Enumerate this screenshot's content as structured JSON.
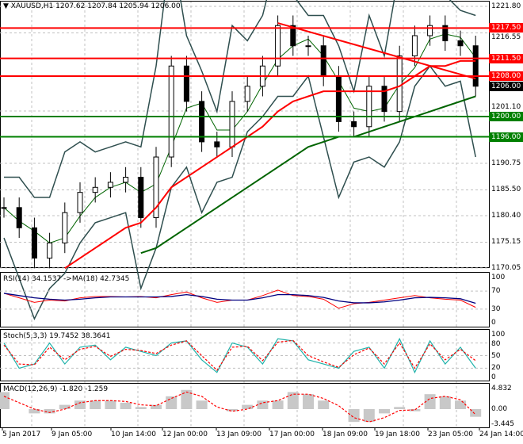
{
  "header": {
    "symbol": "XAUUSD,H1",
    "ohlc": "1207.62 1207.84 1205.94 1206.00"
  },
  "price_axis": [
    "1221.80",
    "1216.55",
    "1201.10",
    "1190.75",
    "1185.50",
    "1180.40",
    "1175.15",
    "1170.05"
  ],
  "levels": [
    {
      "label": "1217.50",
      "value": 1217.5,
      "color": "#ff0000"
    },
    {
      "label": "1211.50",
      "value": 1211.5,
      "color": "#ff0000"
    },
    {
      "label": "1208.00",
      "value": 1208.0,
      "color": "#ff0000"
    },
    {
      "label": "1200.00",
      "value": 1200.0,
      "color": "#008000"
    },
    {
      "label": "1196.00",
      "value": 1196.0,
      "color": "#008000"
    }
  ],
  "bid": {
    "label": "1206.00",
    "value": 1206.0
  },
  "indicators": {
    "rsi": {
      "title": "RSI(14) 34.1537  ->MA(18) 42.7345",
      "axis": [
        "100",
        "70",
        "30",
        "0"
      ]
    },
    "stoch": {
      "title": "Stoch(5,3,3) 19.7452 38.3641",
      "axis": [
        "100",
        "80",
        "50",
        "20",
        "0"
      ]
    },
    "macd": {
      "title": "MACD(12,26,9) -1.820 -1.259",
      "axis": [
        "4.832",
        "0.00",
        "-3.445"
      ]
    }
  },
  "time_axis": [
    "5 Jan 2017",
    "9 Jan 05:00",
    "10 Jan 14:00",
    "12 Jan 00:00",
    "13 Jan 09:00",
    "17 Jan 00:00",
    "18 Jan 09:00",
    "19 Jan 18:00",
    "23 Jan 05:00",
    "24 Jan 14:00"
  ],
  "chart_data": {
    "type": "candlestick",
    "ylim": [
      1170.05,
      1221.8
    ],
    "close": [
      1182,
      1178,
      1172,
      1175,
      1181,
      1185,
      1186,
      1187,
      1188,
      1180,
      1192,
      1210,
      1203,
      1195,
      1194,
      1203,
      1206,
      1210,
      1218,
      1214,
      1214,
      1208,
      1199,
      1198,
      1206,
      1201,
      1212,
      1216,
      1218,
      1215,
      1214,
      1206
    ],
    "ma_red": [
      null,
      null,
      null,
      null,
      1170,
      1172,
      1174,
      1176,
      1178,
      1179,
      1182,
      1186,
      1188,
      1190,
      1192,
      1194,
      1196,
      1198,
      1201,
      1203,
      1204,
      1205,
      1205,
      1205,
      1205,
      1205,
      1206,
      1208,
      1210,
      1210,
      1211,
      1211
    ],
    "ma_green": [
      null,
      null,
      null,
      null,
      null,
      null,
      null,
      null,
      null,
      1173,
      1174,
      1176,
      1178,
      1180,
      1182,
      1184,
      1186,
      1188,
      1190,
      1192,
      1194,
      1195,
      1196,
      1196,
      1197,
      1198,
      1199,
      1200,
      1201,
      1202,
      1203,
      1204
    ],
    "trendline": {
      "from": [
        18,
        1218.5
      ],
      "to": [
        31,
        1207.5
      ]
    },
    "rsi": [
      65,
      55,
      45,
      50,
      48,
      55,
      58,
      58,
      57,
      58,
      55,
      62,
      68,
      55,
      45,
      50,
      50,
      60,
      72,
      60,
      58,
      52,
      32,
      42,
      45,
      50,
      55,
      60,
      55,
      52,
      50,
      34
    ],
    "rsi_ma": [
      65,
      60,
      55,
      52,
      50,
      52,
      55,
      57,
      57,
      57,
      57,
      58,
      62,
      58,
      52,
      50,
      50,
      55,
      62,
      62,
      60,
      56,
      48,
      44,
      44,
      46,
      50,
      55,
      56,
      55,
      53,
      43
    ],
    "stoch_k": [
      80,
      20,
      30,
      80,
      30,
      70,
      75,
      40,
      70,
      60,
      50,
      80,
      85,
      40,
      10,
      80,
      70,
      30,
      90,
      85,
      40,
      30,
      20,
      60,
      70,
      20,
      90,
      10,
      85,
      30,
      70,
      20
    ],
    "stoch_d": [
      75,
      30,
      28,
      70,
      40,
      65,
      72,
      48,
      65,
      62,
      55,
      75,
      85,
      50,
      15,
      70,
      72,
      38,
      82,
      86,
      50,
      35,
      22,
      52,
      68,
      30,
      80,
      20,
      78,
      40,
      65,
      38
    ],
    "macd_hist": [
      4,
      0,
      -1,
      -1,
      1,
      2,
      2,
      2,
      1.5,
      0.5,
      1,
      3,
      4.5,
      2,
      0,
      -0.5,
      1,
      2,
      2,
      4,
      3.5,
      2,
      0,
      -3,
      -3,
      -1,
      0.5,
      -0.5,
      3.5,
      3,
      2,
      -1.8
    ],
    "macd_signal": [
      3,
      1.5,
      0,
      -0.8,
      0,
      1.5,
      2,
      2,
      1.8,
      1,
      0.8,
      2.5,
      4,
      3,
      0.5,
      -0.5,
      0,
      1.5,
      2,
      3.5,
      3.5,
      2.5,
      0.8,
      -2,
      -3,
      -2,
      -0.3,
      -0.2,
      2.5,
      3,
      2.2,
      -1.3
    ]
  }
}
